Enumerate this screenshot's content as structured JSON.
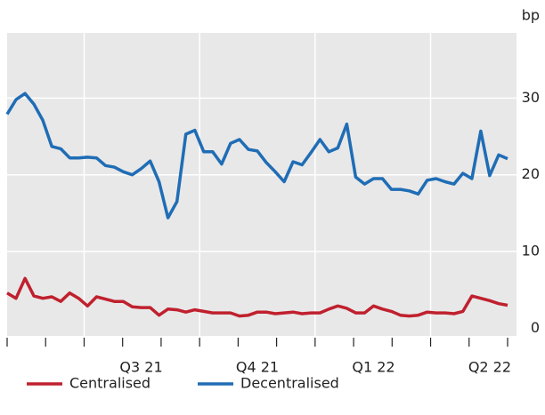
{
  "chart_data": {
    "type": "line",
    "y_unit": "bp",
    "categories": [
      null,
      null,
      null,
      null,
      null,
      null,
      null,
      null,
      null,
      null,
      null,
      null,
      null,
      null,
      null,
      "Q3 21",
      null,
      null,
      null,
      null,
      null,
      null,
      null,
      null,
      null,
      null,
      null,
      null,
      "Q4 21",
      null,
      null,
      null,
      null,
      null,
      null,
      null,
      null,
      null,
      null,
      null,
      null,
      "Q1 22",
      null,
      null,
      null,
      null,
      null,
      null,
      null,
      null,
      null,
      null,
      null,
      null,
      "Q2 22",
      null,
      null
    ],
    "series": [
      {
        "name": "Centralised",
        "color": "#c0202e",
        "values": [
          4.6,
          3.9,
          6.5,
          4.2,
          3.9,
          4.1,
          3.5,
          4.6,
          3.9,
          2.9,
          4.1,
          3.8,
          3.5,
          3.5,
          2.8,
          2.7,
          2.7,
          1.7,
          2.5,
          2.4,
          2.1,
          2.4,
          2.2,
          2.0,
          2.0,
          2.0,
          1.6,
          1.7,
          2.1,
          2.1,
          1.9,
          2.0,
          2.1,
          1.9,
          2.0,
          2.0,
          2.5,
          2.9,
          2.6,
          2.0,
          2.0,
          2.9,
          2.5,
          2.2,
          1.7,
          1.6,
          1.7,
          2.1,
          2.0,
          2.0,
          1.9,
          2.2,
          4.2,
          3.9,
          3.6,
          3.2,
          3.0
        ]
      },
      {
        "name": "Decentralised",
        "color": "#1f6db5",
        "values": [
          27.9,
          29.8,
          30.6,
          29.2,
          27.1,
          23.7,
          23.4,
          22.2,
          22.2,
          22.3,
          22.2,
          21.2,
          21.0,
          20.4,
          20.0,
          20.8,
          21.8,
          19.1,
          14.4,
          16.5,
          25.3,
          25.8,
          23.0,
          23.0,
          21.4,
          24.1,
          24.6,
          23.3,
          23.1,
          21.6,
          20.4,
          19.1,
          21.7,
          21.3,
          22.9,
          24.6,
          23.0,
          23.5,
          26.6,
          19.7,
          18.8,
          19.5,
          19.5,
          18.1,
          18.1,
          17.9,
          17.5,
          19.3,
          19.5,
          19.1,
          18.8,
          20.2,
          19.5,
          25.7,
          19.9,
          22.6,
          22.1
        ]
      }
    ],
    "ylim": [
      -1,
      38.5
    ],
    "yticks": [
      0,
      10,
      20,
      30
    ],
    "grid": true
  }
}
